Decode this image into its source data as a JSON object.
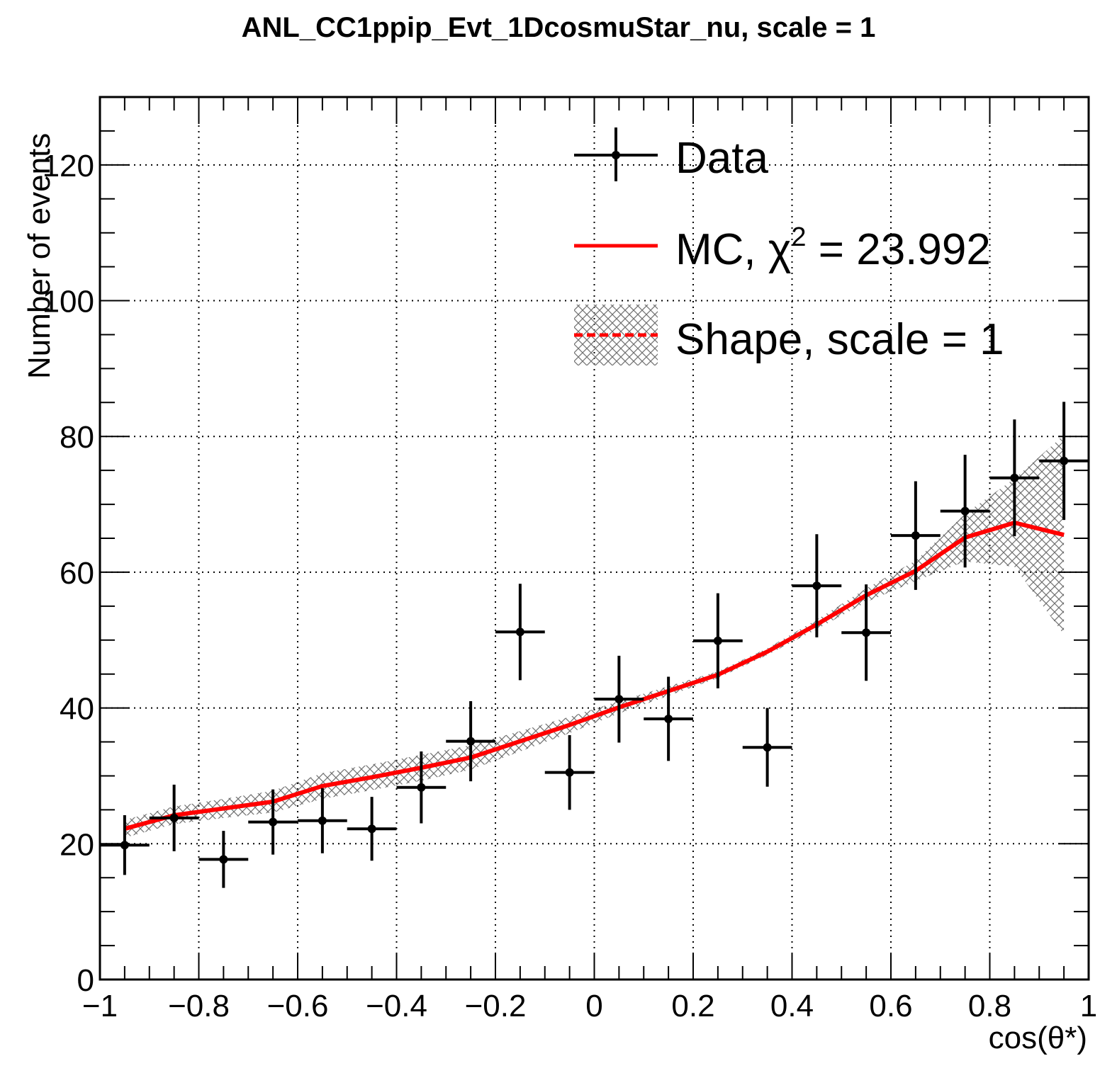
{
  "chart_data": {
    "type": "scatter",
    "title": "ANL_CC1ppip_Evt_1DcosmuStar_nu, scale = 1",
    "xlabel": "cos(θ*)",
    "ylabel": "Number of events",
    "xlim": [
      -1,
      1
    ],
    "ylim": [
      0,
      130
    ],
    "grid": true,
    "legend_position": "top-right",
    "x_ticks": [
      "−1",
      "−0.8",
      "−0.6",
      "−0.4",
      "−0.2",
      "0",
      "0.2",
      "0.4",
      "0.6",
      "0.8",
      "1"
    ],
    "y_ticks": [
      "0",
      "20",
      "40",
      "60",
      "80",
      "100",
      "120"
    ],
    "x": [
      -0.95,
      -0.85,
      -0.75,
      -0.65,
      -0.55,
      -0.45,
      -0.35,
      -0.25,
      -0.15,
      -0.05,
      0.05,
      0.15,
      0.25,
      0.35,
      0.45,
      0.55,
      0.65,
      0.75,
      0.85,
      0.95
    ],
    "series": [
      {
        "name": "Data",
        "style": "points",
        "color": "#000000",
        "values": [
          19.8,
          23.8,
          17.7,
          23.2,
          23.4,
          22.2,
          28.3,
          35.1,
          51.2,
          30.5,
          41.3,
          38.4,
          49.9,
          34.2,
          58.0,
          51.1,
          65.4,
          69.0,
          73.9,
          76.4
        ],
        "errors": [
          4.4,
          4.9,
          4.2,
          4.8,
          4.8,
          4.7,
          5.3,
          5.9,
          7.1,
          5.5,
          6.4,
          6.2,
          7.0,
          5.8,
          7.6,
          7.1,
          8.0,
          8.3,
          8.6,
          8.7
        ]
      },
      {
        "name": "MC, χ² = 23.992",
        "legend_parts": {
          "prefix": "MC, ",
          "symbol": "χ",
          "superscript": "2",
          "suffix": " = 23.992"
        },
        "style": "line",
        "color": "#ff0000",
        "values": [
          22.2,
          24.2,
          25.2,
          26.2,
          28.5,
          29.8,
          31.2,
          32.7,
          35.1,
          37.5,
          40.1,
          42.5,
          44.9,
          48.3,
          52.3,
          56.6,
          60.2,
          65.1,
          67.3,
          65.5
        ]
      },
      {
        "name": "Shape, scale = 1",
        "style": "dashed line with hatched band",
        "color": "#ff0000",
        "band_color": "#808080",
        "values": [
          22.2,
          24.2,
          25.2,
          26.2,
          28.5,
          29.8,
          31.2,
          32.7,
          35.1,
          37.5,
          40.1,
          42.5,
          44.9,
          48.3,
          52.3,
          56.6,
          60.2,
          65.1,
          67.3,
          65.5
        ],
        "band_low": [
          20.9,
          22.9,
          23.8,
          24.6,
          26.6,
          27.9,
          29.3,
          30.9,
          33.6,
          36.3,
          39.2,
          41.8,
          44.4,
          47.8,
          51.6,
          55.6,
          58.7,
          61.6,
          60.8,
          50.8
        ],
        "band_high": [
          23.5,
          25.5,
          26.6,
          27.8,
          30.4,
          31.7,
          33.1,
          34.5,
          36.6,
          38.7,
          41.0,
          43.2,
          45.4,
          48.8,
          53.0,
          57.6,
          61.7,
          68.6,
          73.8,
          80.2
        ]
      }
    ]
  }
}
